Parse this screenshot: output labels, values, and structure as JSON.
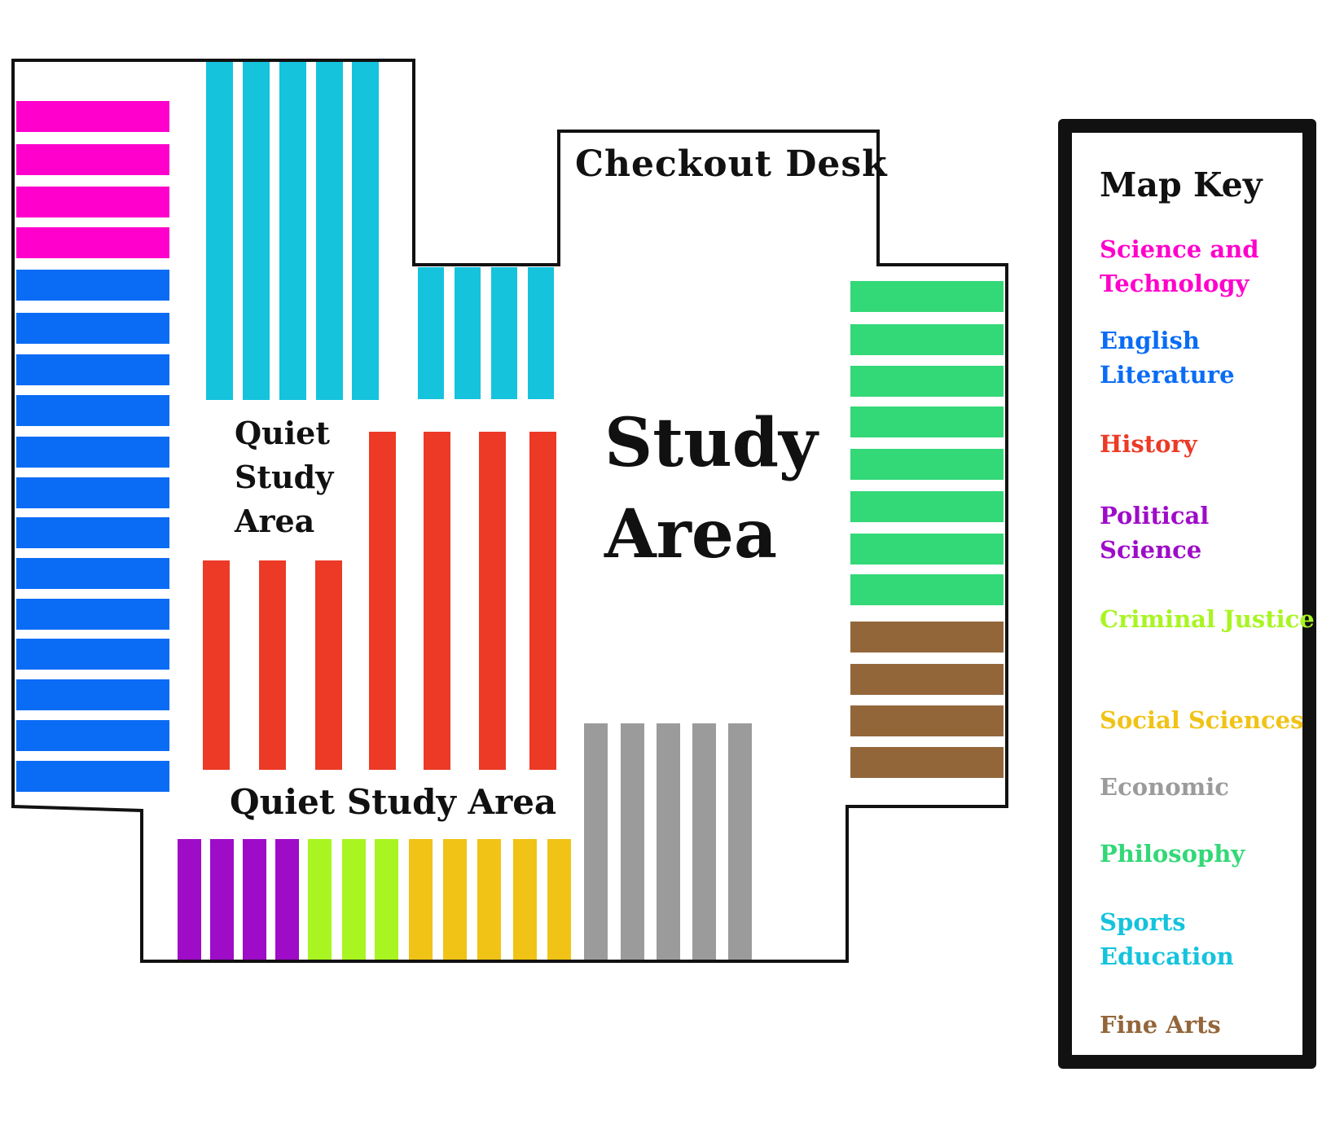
{
  "map": {
    "labels": {
      "checkout_desk": "Checkout Desk",
      "study_area_line1": "Study",
      "study_area_line2": "Area",
      "quiet_left_line1": "Quiet",
      "quiet_left_line2": "Study",
      "quiet_left_line3": "Area",
      "quiet_bottom": "Quiet Study Area"
    },
    "shelf_groups": [
      {
        "category": "Science and Technology",
        "count": 4,
        "location": "left wall, top"
      },
      {
        "category": "English Literature",
        "count": 13,
        "location": "left wall"
      },
      {
        "category": "Sports Education",
        "count": 9,
        "location": "top center"
      },
      {
        "category": "History",
        "count": 7,
        "location": "center"
      },
      {
        "category": "Philosophy",
        "count": 8,
        "location": "right wall"
      },
      {
        "category": "Fine Arts",
        "count": 4,
        "location": "right wall, bottom"
      },
      {
        "category": "Economic",
        "count": 5,
        "location": "bottom right"
      },
      {
        "category": "Political Science",
        "count": 4,
        "location": "bottom"
      },
      {
        "category": "Criminal Justice",
        "count": 3,
        "location": "bottom"
      },
      {
        "category": "Social Sciences",
        "count": 5,
        "location": "bottom"
      }
    ]
  },
  "key": {
    "title": "Map Key",
    "entries": [
      {
        "label": "Science and Technology",
        "color": "#FF00CC"
      },
      {
        "label": "English Literature",
        "color": "#0A6CF5"
      },
      {
        "label": "History",
        "color": "#EC3A26"
      },
      {
        "label": "Political Science",
        "color": "#9E0CC8"
      },
      {
        "label": "Criminal Justice",
        "color": "#A8F522"
      },
      {
        "label": "Social Sciences",
        "color": "#F0C316"
      },
      {
        "label": "Economic",
        "color": "#9B9B9B"
      },
      {
        "label": "Philosophy",
        "color": "#33D877"
      },
      {
        "label": "Sports Education",
        "color": "#15C3DD"
      },
      {
        "label": "Fine Arts",
        "color": "#93663A"
      }
    ]
  }
}
